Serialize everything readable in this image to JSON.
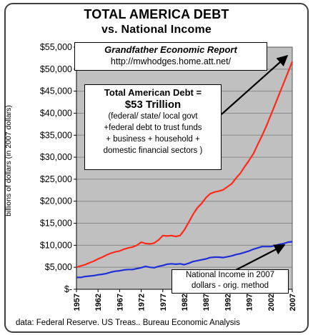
{
  "chart_data": {
    "type": "line",
    "title": "TOTAL AMERICA DEBT",
    "subtitle": "vs. National Income",
    "ylabel": "billions of dollars (in 2007 dollars)",
    "xlabel": "",
    "ylim": [
      0,
      55000
    ],
    "xlim": [
      1957,
      2007
    ],
    "y_ticks": [
      "$-",
      "$5,000",
      "$10,000",
      "$15,000",
      "$20,000",
      "$25,000",
      "$30,000",
      "$35,000",
      "$40,000",
      "$45,000",
      "$50,000",
      "$55,000"
    ],
    "x_ticks": [
      "1957",
      "1962",
      "1967",
      "1972",
      "1977",
      "1982",
      "1987",
      "1992",
      "1997",
      "2002",
      "2007"
    ],
    "grid": "horizontal",
    "series": [
      {
        "name": "Total American Debt",
        "color": "#ff2a1a",
        "x": [
          1957,
          1958,
          1959,
          1960,
          1961,
          1962,
          1963,
          1964,
          1965,
          1966,
          1967,
          1968,
          1969,
          1970,
          1971,
          1972,
          1973,
          1974,
          1975,
          1976,
          1977,
          1978,
          1979,
          1980,
          1981,
          1982,
          1983,
          1984,
          1985,
          1986,
          1987,
          1988,
          1989,
          1990,
          1991,
          1992,
          1993,
          1994,
          1995,
          1996,
          1997,
          1998,
          1999,
          2000,
          2001,
          2002,
          2003,
          2004,
          2005,
          2006,
          2007
        ],
        "values": [
          5000,
          5300,
          5600,
          6000,
          6400,
          6900,
          7300,
          7800,
          8200,
          8500,
          8700,
          9100,
          9400,
          9600,
          10000,
          10700,
          10400,
          10300,
          10500,
          11200,
          12200,
          12100,
          12200,
          12000,
          12200,
          13500,
          15200,
          17000,
          18500,
          19500,
          20800,
          21700,
          22100,
          22300,
          22600,
          23300,
          24000,
          25300,
          26400,
          27900,
          29300,
          30800,
          32900,
          34900,
          37100,
          39500,
          41900,
          44400,
          46800,
          49300,
          51700
        ]
      },
      {
        "name": "National Income in 2007 dollars - orig. method",
        "color": "#1f2fd8",
        "x": [
          1957,
          1958,
          1959,
          1960,
          1961,
          1962,
          1963,
          1964,
          1965,
          1966,
          1967,
          1968,
          1969,
          1970,
          1971,
          1972,
          1973,
          1974,
          1975,
          1976,
          1977,
          1978,
          1979,
          1980,
          1981,
          1982,
          1983,
          1984,
          1985,
          1986,
          1987,
          1988,
          1989,
          1990,
          1991,
          1992,
          1993,
          1994,
          1995,
          1996,
          1997,
          1998,
          1999,
          2000,
          2001,
          2002,
          2003,
          2004,
          2005,
          2006,
          2007
        ],
        "values": [
          2700,
          2700,
          2900,
          3000,
          3100,
          3300,
          3400,
          3600,
          3900,
          4100,
          4200,
          4400,
          4500,
          4500,
          4700,
          4900,
          5200,
          5000,
          4900,
          5200,
          5400,
          5700,
          5800,
          5700,
          5800,
          5600,
          5900,
          6300,
          6500,
          6700,
          6900,
          7200,
          7300,
          7300,
          7200,
          7400,
          7600,
          7900,
          8100,
          8400,
          8700,
          9100,
          9400,
          9700,
          9700,
          9700,
          9900,
          10200,
          10400,
          10700,
          10800
        ]
      }
    ]
  },
  "title_line1": "TOTAL AMERICA DEBT",
  "title_line2": "vs. National Income",
  "report_box": {
    "title": "Grandfather Economic Report",
    "url": "http://mwhodges.home.att.net/"
  },
  "debt_annotation": {
    "heading": "Total American Debt =",
    "amount": "$53 Trillion",
    "lines": [
      "(federal/ state/ local govt",
      "+federal debt to trust funds",
      "+ business + household +",
      "domestic financial sectors )"
    ]
  },
  "income_annotation": {
    "lines": [
      "National Income in 2007",
      "dollars - orig. method"
    ]
  },
  "source": "data: Federal Reserve. US Treas.. Bureau Economic Analysis",
  "colors": {
    "plot_background": "#c0c0c0",
    "gridline": "#8a8a8a"
  }
}
